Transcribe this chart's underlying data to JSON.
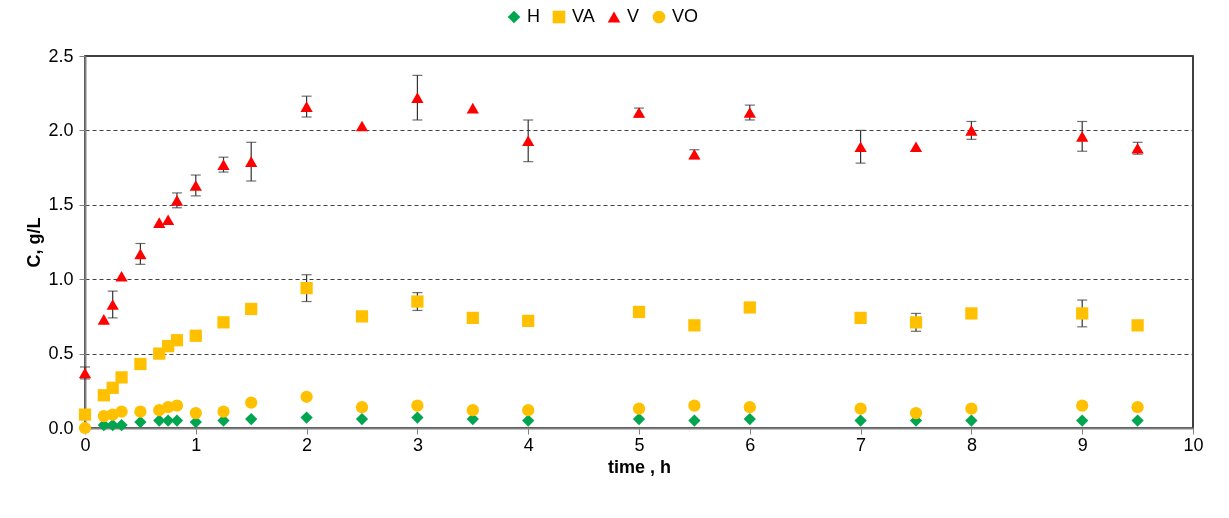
{
  "chart_data": {
    "type": "scatter",
    "xlabel": "time , h",
    "ylabel": "C, g/L",
    "x": [
      0,
      0.17,
      0.25,
      0.33,
      0.5,
      0.67,
      0.75,
      0.83,
      1,
      1.25,
      1.5,
      2,
      2.5,
      3,
      3.5,
      4,
      5,
      5.5,
      6,
      7,
      7.5,
      8,
      9,
      9.5
    ],
    "series": [
      {
        "name": "H",
        "color": "#00a550",
        "marker": "diamond",
        "values": [
          null,
          0.02,
          0.02,
          0.02,
          0.04,
          0.05,
          0.05,
          0.05,
          0.04,
          0.05,
          0.06,
          0.07,
          0.06,
          0.07,
          0.06,
          0.05,
          0.06,
          0.05,
          0.06,
          0.05,
          0.05,
          0.05,
          0.05,
          0.05
        ]
      },
      {
        "name": "VA",
        "color": "#ffc000",
        "marker": "square",
        "values": [
          0.09,
          0.22,
          0.27,
          0.34,
          0.43,
          0.5,
          0.55,
          0.59,
          0.62,
          0.71,
          0.8,
          0.94,
          0.75,
          0.85,
          0.74,
          0.72,
          0.78,
          0.69,
          0.81,
          0.74,
          0.71,
          0.77,
          0.77,
          0.69
        ],
        "errors": [
          null,
          null,
          null,
          null,
          null,
          null,
          null,
          null,
          null,
          null,
          null,
          0.09,
          null,
          0.06,
          null,
          null,
          null,
          null,
          null,
          null,
          0.06,
          null,
          0.09,
          null
        ]
      },
      {
        "name": "V",
        "color": "#ff0000",
        "marker": "triangle",
        "values": [
          0.37,
          0.73,
          0.83,
          1.02,
          1.17,
          1.38,
          1.4,
          1.53,
          1.63,
          1.77,
          1.79,
          2.16,
          2.03,
          2.22,
          2.15,
          1.93,
          2.12,
          1.84,
          2.12,
          1.89,
          1.89,
          2.0,
          1.96,
          1.88
        ],
        "errors": [
          0.04,
          null,
          0.09,
          null,
          0.07,
          null,
          null,
          0.05,
          0.07,
          0.05,
          0.13,
          0.07,
          null,
          0.15,
          null,
          0.14,
          0.03,
          0.03,
          0.05,
          0.11,
          null,
          0.06,
          0.1,
          0.04
        ]
      },
      {
        "name": "VO",
        "color": "#ffc000",
        "marker": "circle",
        "values": [
          0.0,
          0.08,
          0.09,
          0.11,
          0.11,
          0.12,
          0.14,
          0.15,
          0.1,
          0.11,
          0.17,
          0.21,
          0.14,
          0.15,
          0.12,
          0.12,
          0.13,
          0.15,
          0.14,
          0.13,
          0.1,
          0.13,
          0.15,
          0.14
        ]
      }
    ],
    "xlim": [
      0,
      10
    ],
    "xticks": [
      0,
      1,
      2,
      3,
      4,
      5,
      6,
      7,
      8,
      9,
      10
    ],
    "ylim": [
      0,
      2.5
    ],
    "yticks": [
      {
        "value": 0,
        "label": "0.0"
      },
      {
        "value": 0.5,
        "label": "0.5"
      },
      {
        "value": 1,
        "label": "1.0"
      },
      {
        "value": 1.5,
        "label": "1.5"
      },
      {
        "value": 2,
        "label": "2.0"
      },
      {
        "value": 2.5,
        "label": "2.5"
      }
    ],
    "grid": "y",
    "legend": "top"
  }
}
